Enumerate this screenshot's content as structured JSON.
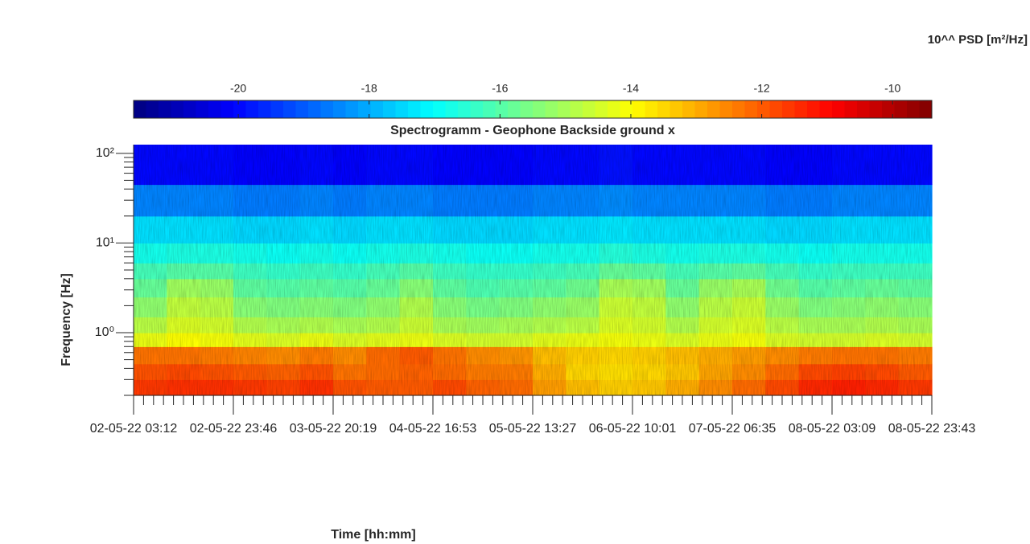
{
  "chart_data": {
    "type": "heatmap",
    "title": "Spectrogramm - Geophone Backside ground x",
    "colorbar_label": "10^^ PSD [m²/Hz]",
    "xlabel": "Time [hh:mm]",
    "ylabel": "Frequency [Hz]",
    "colormap": "jet",
    "clim": [
      -21.6,
      -9.4
    ],
    "cticks": [
      -20,
      -18,
      -16,
      -14,
      -12,
      -10
    ],
    "yscale": "log",
    "ylim": [
      0.2,
      125
    ],
    "yticks": [
      {
        "value": 1,
        "label": "10⁰"
      },
      {
        "value": 10,
        "label": "10¹"
      },
      {
        "value": 100,
        "label": "10²"
      }
    ],
    "xticks": [
      "02-05-22 03:12",
      "02-05-22 23:46",
      "03-05-22 20:19",
      "04-05-22 16:53",
      "05-05-22 13:27",
      "06-05-22 10:01",
      "07-05-22 06:35",
      "08-05-22 03:09",
      "08-05-22 23:43"
    ],
    "y_bins": [
      0.2,
      0.3,
      0.45,
      0.7,
      1,
      1.5,
      2.5,
      4,
      6,
      10,
      20,
      45,
      125
    ],
    "z": [
      [
        -11.6,
        -11.5,
        -11.5,
        -11.6,
        -11.7,
        -11.5,
        -11.9,
        -12.0,
        -12.0,
        -11.8,
        -12.1,
        -12.2,
        -12.8,
        -13.2,
        -13.4,
        -13.3,
        -13.0,
        -12.6,
        -12.2,
        -11.8,
        -11.4,
        -11.3,
        -11.4,
        -11.6
      ],
      [
        -11.9,
        -11.8,
        -11.9,
        -12.0,
        -12.1,
        -11.9,
        -12.3,
        -12.2,
        -12.1,
        -12.2,
        -12.4,
        -12.4,
        -13.0,
        -13.5,
        -13.6,
        -13.5,
        -13.3,
        -12.9,
        -12.6,
        -12.2,
        -11.8,
        -11.7,
        -11.8,
        -12.0
      ],
      [
        -12.3,
        -12.3,
        -12.4,
        -12.5,
        -12.6,
        -12.4,
        -12.6,
        -12.2,
        -12.0,
        -12.3,
        -12.6,
        -12.7,
        -13.2,
        -13.4,
        -13.5,
        -13.4,
        -13.2,
        -13.0,
        -12.8,
        -12.6,
        -12.4,
        -12.3,
        -12.3,
        -12.4
      ],
      [
        -14.2,
        -14.0,
        -14.1,
        -14.3,
        -14.4,
        -14.2,
        -14.4,
        -14.3,
        -14.2,
        -14.4,
        -14.5,
        -14.5,
        -14.3,
        -14.2,
        -14.1,
        -14.2,
        -14.4,
        -14.2,
        -14.1,
        -14.4,
        -14.5,
        -14.5,
        -14.4,
        -14.5
      ],
      [
        -14.8,
        -14.4,
        -14.5,
        -14.9,
        -15.0,
        -14.9,
        -15.0,
        -14.9,
        -14.6,
        -15.0,
        -15.1,
        -15.0,
        -14.9,
        -14.8,
        -14.4,
        -14.5,
        -14.9,
        -14.5,
        -14.4,
        -14.8,
        -15.0,
        -15.0,
        -14.9,
        -15.0
      ],
      [
        -15.3,
        -14.7,
        -14.8,
        -15.4,
        -15.5,
        -15.4,
        -15.5,
        -15.3,
        -14.9,
        -15.4,
        -15.6,
        -15.5,
        -15.3,
        -15.2,
        -14.6,
        -14.7,
        -15.3,
        -14.8,
        -14.6,
        -15.2,
        -15.5,
        -15.4,
        -15.3,
        -15.4
      ],
      [
        -15.8,
        -15.1,
        -15.2,
        -15.9,
        -16.0,
        -15.9,
        -16.0,
        -15.8,
        -15.4,
        -15.9,
        -16.1,
        -16.0,
        -15.9,
        -15.7,
        -15.0,
        -15.1,
        -15.8,
        -15.2,
        -15.0,
        -15.7,
        -16.0,
        -15.9,
        -15.8,
        -15.9
      ],
      [
        -16.2,
        -16.0,
        -16.0,
        -16.3,
        -16.4,
        -16.3,
        -16.4,
        -16.2,
        -16.0,
        -16.3,
        -16.4,
        -16.4,
        -16.3,
        -16.2,
        -15.8,
        -15.9,
        -16.2,
        -16.0,
        -15.9,
        -16.2,
        -16.4,
        -16.3,
        -16.3,
        -16.3
      ],
      [
        -16.8,
        -16.7,
        -16.7,
        -16.8,
        -16.9,
        -16.8,
        -16.9,
        -16.8,
        -16.7,
        -16.8,
        -16.9,
        -16.9,
        -16.8,
        -16.8,
        -16.6,
        -16.7,
        -16.8,
        -16.7,
        -16.7,
        -16.8,
        -16.9,
        -16.8,
        -16.8,
        -16.8
      ],
      [
        -17.4,
        -17.4,
        -17.4,
        -17.5,
        -17.5,
        -17.4,
        -17.5,
        -17.4,
        -17.4,
        -17.5,
        -17.5,
        -17.5,
        -17.4,
        -17.4,
        -17.3,
        -17.4,
        -17.4,
        -17.4,
        -17.4,
        -17.5,
        -17.5,
        -17.4,
        -17.4,
        -17.4
      ],
      [
        -18.5,
        -18.5,
        -18.5,
        -18.6,
        -18.6,
        -18.5,
        -18.6,
        -18.5,
        -18.5,
        -18.6,
        -18.6,
        -18.6,
        -18.5,
        -18.5,
        -18.4,
        -18.5,
        -18.5,
        -18.5,
        -18.5,
        -18.6,
        -18.6,
        -18.5,
        -18.5,
        -18.5
      ],
      [
        -20.0,
        -20.0,
        -20.0,
        -20.1,
        -20.1,
        -20.0,
        -20.1,
        -20.0,
        -20.0,
        -20.1,
        -20.1,
        -20.1,
        -20.0,
        -20.0,
        -19.9,
        -20.0,
        -20.0,
        -20.0,
        -20.0,
        -20.1,
        -20.1,
        -20.0,
        -20.0,
        -20.0
      ]
    ]
  }
}
